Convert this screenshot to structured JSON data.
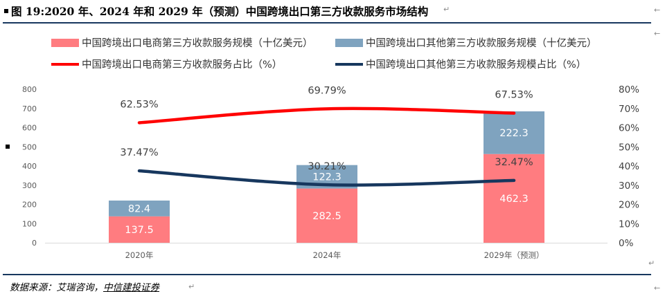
{
  "title": "图 19:2020 年、2024 年和 2029 年（预测）中国跨境出口第三方收款服务市场结构",
  "source": "数据来源：艾瑞咨询，",
  "source_company": "中信建投证券",
  "marks": {
    "return_glyph": "↵",
    "arrow_glyph": "←"
  },
  "colors": {
    "bar_ecommerce": "#ff7c80",
    "bar_other": "#7fa3bf",
    "line_ecommerce": "#ff0000",
    "line_other": "#17375e",
    "rule": "#17375e"
  },
  "chart_data": {
    "type": "bar",
    "stacked": true,
    "categories": [
      "2020年",
      "2024年",
      "2029年（预测）"
    ],
    "series": [
      {
        "name": "中国跨境出口电商第三方收款服务规模（十亿美元）",
        "type": "bar",
        "axis": "left",
        "values": [
          137.5,
          282.5,
          462.3
        ],
        "labels": [
          "137.5",
          "282.5",
          "462.3"
        ]
      },
      {
        "name": "中国跨境出口其他第三方收款服务规模（十亿美元）",
        "type": "bar",
        "axis": "left",
        "values": [
          82.4,
          122.3,
          222.3
        ],
        "labels": [
          "82.4",
          "122.3",
          "222.3"
        ]
      },
      {
        "name": "中国跨境出口电商第三方收款服务占比（%）",
        "type": "line",
        "axis": "right",
        "values": [
          62.53,
          69.79,
          67.53
        ],
        "labels": [
          "62.53%",
          "69.79%",
          "67.53%"
        ]
      },
      {
        "name": "中国跨境出口其他第三方收款服务规模占比（%）",
        "type": "line",
        "axis": "right",
        "values": [
          37.47,
          30.21,
          32.47
        ],
        "labels": [
          "37.47%",
          "30.21%",
          "32.47%"
        ]
      }
    ],
    "y_left": {
      "min": 0,
      "max": 800,
      "ticks": [
        0,
        100,
        200,
        300,
        400,
        500,
        600,
        700,
        800
      ]
    },
    "y_right": {
      "min": 0,
      "max": 80,
      "ticks": [
        "0%",
        "10%",
        "20%",
        "30%",
        "40%",
        "50%",
        "60%",
        "70%",
        "80%"
      ]
    },
    "grid": false,
    "legend_position": "top"
  }
}
